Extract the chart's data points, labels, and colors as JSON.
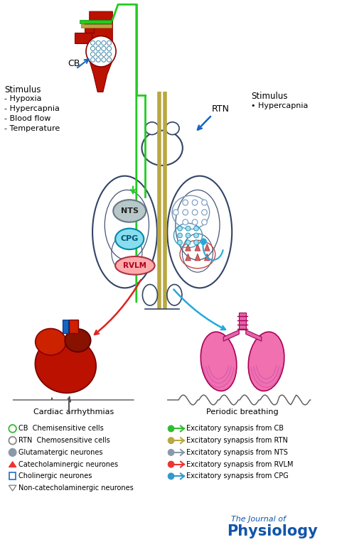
{
  "bg_color": "#ffffff",
  "green_color": "#22CC22",
  "olive_color": "#B8A840",
  "red_color": "#DD2222",
  "blue_color": "#1565C0",
  "cyan_color": "#22AADD",
  "gray_color": "#888888",
  "nts_color": "#B8C8C8",
  "cpg_color": "#88DDEE",
  "rvlm_color": "#FFAAAA",
  "brain_edge": "#334466",
  "cb_label": "CB",
  "rtn_label": "RTN",
  "nts_label": "NTS",
  "cpg_label": "CPG",
  "rvlm_label": "RVLM",
  "stimulus_left_title": "Stimulus",
  "stimulus_left_items": [
    "- Hypoxia",
    "- Hypercapnia",
    "- Blood flow",
    "- Temperature"
  ],
  "stimulus_right_title": "Stimulus",
  "stimulus_right_items": [
    "• Hypercapnia"
  ],
  "cardiac_label": "Cardiac arrhythmias",
  "breathing_label": "Periodic breathing",
  "journal_line1": "The Journal of",
  "journal_line2": "Physiology"
}
